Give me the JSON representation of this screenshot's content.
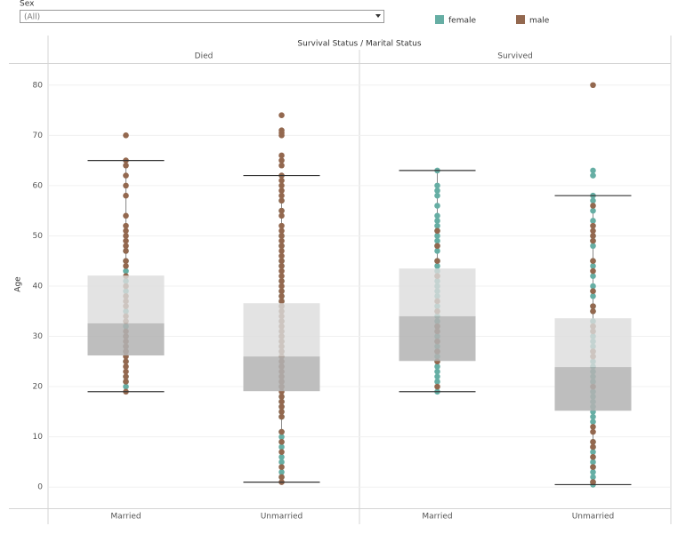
{
  "filter": {
    "label": "Sex",
    "value": "(All)"
  },
  "chart_data": {
    "type": "box",
    "title": "Survival Status / Marital Status",
    "y_label": "Age",
    "ylim": [
      -4.2,
      84.2
    ],
    "yticks": [
      0,
      10,
      20,
      30,
      40,
      50,
      60,
      70,
      80
    ],
    "grid": true,
    "series": [
      {
        "name": "female",
        "color": "#66aea4"
      },
      {
        "name": "male",
        "color": "#93684f"
      }
    ],
    "panels": [
      {
        "name": "Died",
        "boxes": [
          {
            "category": "Married",
            "min": 19,
            "q1": 26.2,
            "median": 32.6,
            "q3": 42.1,
            "max": 65,
            "points": [
              [
                47,
                45,
                43,
                41,
                39,
                35,
                32,
                30,
                28,
                27,
                25,
                22,
                21,
                20
              ],
              [
                70,
                65,
                64,
                62,
                60,
                58,
                54,
                52,
                51,
                50,
                49,
                48,
                47,
                45,
                44,
                42,
                40,
                38,
                37,
                36,
                34,
                33,
                31,
                30,
                29,
                28,
                27,
                26,
                25,
                24,
                23,
                22,
                21,
                19
              ]
            ]
          },
          {
            "category": "Unmarried",
            "min": 1,
            "q1": 19.1,
            "median": 26,
            "q3": 36.6,
            "max": 62,
            "points": [
              [
                57,
                55,
                50,
                48,
                45,
                44,
                41,
                39,
                38,
                37,
                36,
                33,
                31,
                30,
                29,
                28,
                27,
                26,
                25,
                24,
                22,
                21,
                20,
                18,
                17,
                16,
                15,
                14,
                11,
                10,
                9,
                8,
                6,
                5,
                3,
                2
              ],
              [
                74,
                71,
                70.5,
                70,
                66,
                65,
                64,
                62,
                61,
                60,
                59,
                58,
                57,
                55,
                54,
                52,
                51,
                50,
                49,
                48,
                47,
                46,
                45,
                44,
                43,
                42,
                41,
                40,
                39,
                38,
                37,
                36,
                35,
                34,
                33,
                32,
                31,
                30,
                29,
                28,
                27,
                26,
                25,
                24,
                23,
                22,
                21,
                20,
                19,
                18,
                17,
                16,
                15,
                14,
                11,
                9,
                7,
                4,
                2,
                1
              ]
            ]
          }
        ]
      },
      {
        "name": "Survived",
        "boxes": [
          {
            "category": "Married",
            "min": 19,
            "q1": 25.1,
            "median": 34,
            "q3": 43.5,
            "max": 63,
            "points": [
              [
                63,
                60,
                59,
                58,
                56,
                54,
                53,
                52,
                51,
                50,
                49,
                48,
                47,
                45,
                44,
                43,
                42,
                41,
                40,
                39,
                38,
                36,
                35,
                34,
                33,
                32,
                31,
                30,
                29,
                28,
                27,
                26,
                25,
                24,
                23,
                22,
                21,
                19
              ],
              [
                51,
                48,
                45,
                42,
                37,
                35,
                32,
                31,
                29,
                27,
                25,
                20
              ]
            ]
          },
          {
            "category": "Unmarried",
            "min": 0.5,
            "q1": 15.2,
            "median": 23.9,
            "q3": 33.6,
            "max": 58,
            "points": [
              [
                63,
                62,
                58,
                57,
                55,
                53,
                50,
                49,
                48,
                45,
                44,
                42,
                40,
                39,
                38,
                36,
                35,
                33,
                32,
                31,
                30,
                29,
                28,
                27,
                26,
                25,
                24,
                23,
                22,
                21,
                19,
                18,
                17,
                16,
                15,
                14,
                13,
                9,
                8,
                7,
                6,
                5,
                4,
                3,
                2,
                1,
                0.5
              ],
              [
                80,
                56,
                52,
                51,
                50,
                49,
                45,
                43,
                39,
                36,
                35,
                32,
                31,
                27,
                26,
                20,
                12,
                11,
                9,
                8,
                6,
                4,
                1
              ]
            ]
          }
        ]
      }
    ]
  }
}
